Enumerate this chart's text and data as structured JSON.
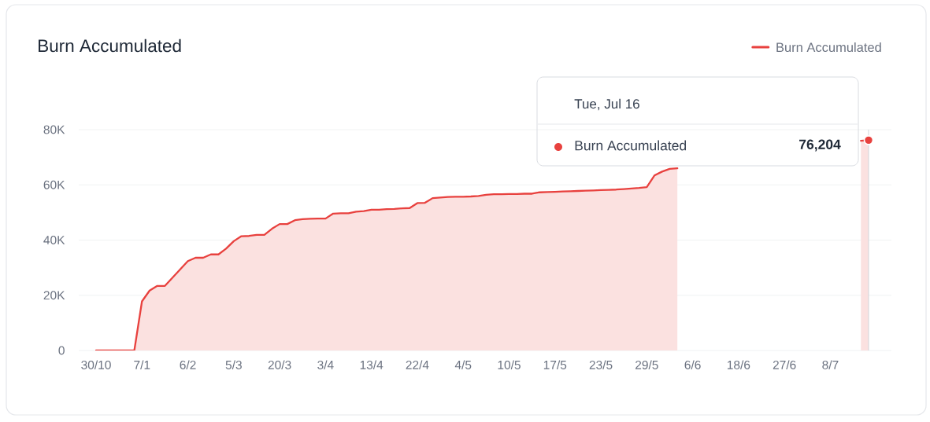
{
  "chart_data": {
    "type": "area",
    "title": "Burn Accumulated",
    "categories": [
      "30/10",
      null,
      null,
      null,
      null,
      null,
      "7/1",
      null,
      null,
      null,
      null,
      null,
      "6/2",
      null,
      null,
      null,
      null,
      null,
      "5/3",
      null,
      null,
      null,
      null,
      null,
      "20/3",
      null,
      null,
      null,
      null,
      null,
      "3/4",
      null,
      null,
      null,
      null,
      null,
      "13/4",
      null,
      null,
      null,
      null,
      null,
      "22/4",
      null,
      null,
      null,
      null,
      null,
      "4/5",
      null,
      null,
      null,
      null,
      null,
      "10/5",
      null,
      null,
      null,
      null,
      null,
      "17/5",
      null,
      null,
      null,
      null,
      null,
      "23/5",
      null,
      null,
      null,
      null,
      null,
      "29/5",
      null,
      null,
      null,
      null,
      null,
      "6/6",
      null,
      null,
      null,
      null,
      null,
      "18/6",
      null,
      null,
      null,
      null,
      null,
      "27/6",
      null,
      null,
      null,
      null,
      null,
      "8/7",
      null,
      null,
      null,
      null,
      null
    ],
    "series": [
      {
        "name": "Burn Accumulated",
        "color": "#e8413e",
        "values": [
          0,
          0,
          0,
          0,
          0,
          0,
          17800,
          21700,
          23400,
          23400,
          26400,
          29400,
          32400,
          33600,
          33600,
          34800,
          34800,
          36900,
          39600,
          41400,
          41500,
          41900,
          41900,
          44100,
          45800,
          45800,
          47200,
          47600,
          47700,
          47800,
          47800,
          49600,
          49700,
          49700,
          50300,
          50500,
          51000,
          51000,
          51200,
          51300,
          51500,
          51600,
          53400,
          53500,
          55200,
          55400,
          55600,
          55700,
          55700,
          55800,
          56000,
          56400,
          56600,
          56600,
          56700,
          56700,
          56800,
          56800,
          57300,
          57400,
          57500,
          57600,
          57700,
          57800,
          57900,
          58000,
          58100,
          58200,
          58300,
          58500,
          58700,
          58900,
          59200,
          63400,
          64800,
          65800,
          66000,
          null,
          null,
          null,
          null,
          null,
          null,
          null,
          null,
          null,
          null,
          null,
          null,
          null,
          null,
          null,
          null,
          null,
          null,
          null,
          null,
          null,
          null,
          null,
          76000,
          76204
        ]
      }
    ],
    "ylim": [
      0,
      80000
    ],
    "yticks": [
      0,
      {
        "value": 20000,
        "label": "20K"
      },
      {
        "value": 40000,
        "label": "40K"
      },
      {
        "value": 60000,
        "label": "60K"
      },
      {
        "value": 80000,
        "label": "80K"
      }
    ],
    "grid": "y",
    "legend": "top right",
    "annotations": [
      "Tue, Jul 16",
      "76,204"
    ]
  }
}
